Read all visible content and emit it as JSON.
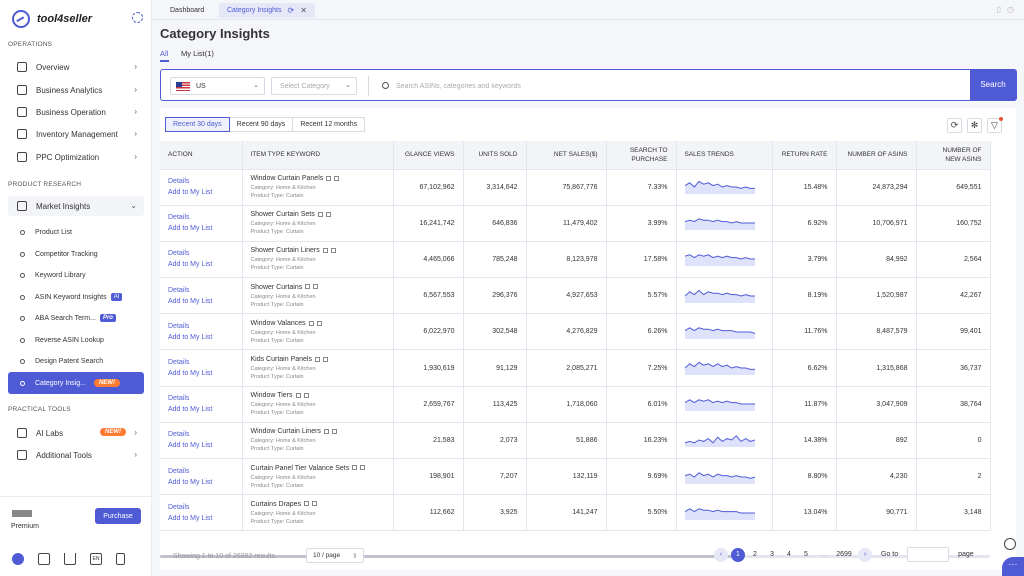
{
  "app": {
    "name": "tool4seller"
  },
  "sidebar": {
    "sections": {
      "operations": "OPERATIONS",
      "research": "PRODUCT RESEARCH",
      "tools": "PRACTICAL TOOLS"
    },
    "operations": [
      {
        "label": "Overview",
        "icon": "home-icon"
      },
      {
        "label": "Business Analytics",
        "icon": "analytics-icon"
      },
      {
        "label": "Business Operation",
        "icon": "operation-icon"
      },
      {
        "label": "Inventory Management",
        "icon": "inventory-icon"
      },
      {
        "label": "PPC Optimization",
        "icon": "monitor-icon"
      }
    ],
    "market": {
      "label": "Market Insights",
      "icon": "market-icon"
    },
    "research_items": [
      {
        "label": "Product List"
      },
      {
        "label": "Competitor Tracking"
      },
      {
        "label": "Keyword Library"
      },
      {
        "label": "ASIN Keyword Insights",
        "badge": "AI"
      },
      {
        "label": "ABA Search Term...",
        "badge": "Pro"
      },
      {
        "label": "Reverse ASIN Lookup"
      },
      {
        "label": "Design Patent Search"
      },
      {
        "label": "Category Insig...",
        "badge": "NEW!"
      }
    ],
    "tools": [
      {
        "label": "AI Labs",
        "icon": "ai-labs-icon",
        "badge": "NEW!"
      },
      {
        "label": "Additional Tools",
        "icon": "grid-icon"
      }
    ],
    "plan": "Premium",
    "purchase": "Purchase"
  },
  "tabs": [
    {
      "label": "Dashboard"
    },
    {
      "label": "Category Insights"
    }
  ],
  "page": {
    "title": "Category Insights",
    "list_tabs": [
      "All",
      "My List(1)"
    ]
  },
  "search": {
    "country": "US",
    "category_placeholder": "Select Category",
    "placeholder": "Search ASINs, categories and keywords",
    "button": "Search"
  },
  "ranges": [
    "Recent 30 days",
    "Recent 90 days",
    "Recent 12 months"
  ],
  "table": {
    "headers": {
      "action": "ACTION",
      "keyword": "ITEM TYPE KEYWORD",
      "glance": "GLANCE VIEWS",
      "units": "UNITS SOLD",
      "sales": "NET SALES($)",
      "s2p_1": "SEARCH TO",
      "s2p_2": "PURCHASE",
      "trends": "SALES TRENDS",
      "return": "RETURN RATE",
      "asins": "NUMBER OF ASINS",
      "new_1": "NUMBER OF",
      "new_2": "NEW ASINS"
    },
    "details": "Details",
    "add": "Add to My List",
    "rows": [
      {
        "keyword": "Window Curtain Panels",
        "category": "Category: Home & Kitchen",
        "type": "Product Type: Curtain",
        "glance": "67,102,962",
        "units": "3,314,642",
        "sales": "75,867,776",
        "s2p": "7.33%",
        "ret": "15.48%",
        "asins": "24,873,294",
        "new": "649,551",
        "trend": [
          6,
          8,
          5,
          9,
          7,
          8,
          6,
          7,
          5,
          6,
          5,
          5,
          4,
          5,
          4,
          4
        ]
      },
      {
        "keyword": "Shower Curtain Sets",
        "category": "Category: Home & Kitchen",
        "type": "Product Type: Curtain",
        "glance": "16,241,742",
        "units": "646,836",
        "sales": "11,479,402",
        "s2p": "3.99%",
        "ret": "6.92%",
        "asins": "10,706,971",
        "new": "160,752",
        "trend": [
          6,
          7,
          6,
          8,
          7,
          7,
          6,
          7,
          6,
          6,
          5,
          6,
          5,
          5,
          5,
          5
        ]
      },
      {
        "keyword": "Shower Curtain Liners",
        "category": "Category: Home & Kitchen",
        "type": "Product Type: Curtain",
        "glance": "4,465,066",
        "units": "785,248",
        "sales": "8,123,978",
        "s2p": "17.58%",
        "ret": "3.79%",
        "asins": "84,992",
        "new": "2,564",
        "trend": [
          7,
          8,
          6,
          8,
          7,
          8,
          6,
          7,
          6,
          7,
          6,
          6,
          5,
          6,
          5,
          5
        ]
      },
      {
        "keyword": "Shower Curtains",
        "category": "Category: Home & Kitchen",
        "type": "Product Type: Curtain",
        "glance": "6,567,553",
        "units": "296,376",
        "sales": "4,927,653",
        "s2p": "5.57%",
        "ret": "8.19%",
        "asins": "1,520,987",
        "new": "42,267",
        "trend": [
          5,
          8,
          6,
          9,
          6,
          8,
          7,
          7,
          6,
          7,
          6,
          6,
          5,
          6,
          5,
          5
        ]
      },
      {
        "keyword": "Window Valances",
        "category": "Category: Home & Kitchen",
        "type": "Product Type: Curtain",
        "glance": "6,022,970",
        "units": "302,548",
        "sales": "4,276,829",
        "s2p": "6.26%",
        "ret": "11.76%",
        "asins": "8,487,579",
        "new": "99,401",
        "trend": [
          6,
          8,
          6,
          8,
          7,
          7,
          6,
          7,
          6,
          6,
          6,
          5,
          5,
          5,
          5,
          4
        ]
      },
      {
        "keyword": "Kids Curtain Panels",
        "category": "Category: Home & Kitchen",
        "type": "Product Type: Curtain",
        "glance": "1,930,619",
        "units": "91,129",
        "sales": "2,085,271",
        "s2p": "7.25%",
        "ret": "6.62%",
        "asins": "1,315,868",
        "new": "36,737",
        "trend": [
          5,
          8,
          6,
          9,
          7,
          8,
          6,
          8,
          6,
          7,
          5,
          6,
          5,
          5,
          4,
          4
        ]
      },
      {
        "keyword": "Window Tiers",
        "category": "Category: Home & Kitchen",
        "type": "Product Type: Curtain",
        "glance": "2,659,767",
        "units": "113,425",
        "sales": "1,718,060",
        "s2p": "6.01%",
        "ret": "11.87%",
        "asins": "3,047,909",
        "new": "38,764",
        "trend": [
          6,
          8,
          6,
          8,
          7,
          8,
          6,
          7,
          6,
          7,
          6,
          6,
          5,
          5,
          5,
          5
        ]
      },
      {
        "keyword": "Window Curtain Liners",
        "category": "Category: Home & Kitchen",
        "type": "Product Type: Curtain",
        "glance": "21,583",
        "units": "2,073",
        "sales": "51,886",
        "s2p": "16.23%",
        "ret": "14.38%",
        "asins": "892",
        "new": "0",
        "trend": [
          3,
          4,
          3,
          5,
          4,
          6,
          3,
          7,
          4,
          6,
          5,
          8,
          4,
          6,
          4,
          5
        ]
      },
      {
        "keyword": "Curtain Panel Tier Valance Sets",
        "category": "Category: Home & Kitchen",
        "type": "Product Type: Curtain",
        "glance": "198,901",
        "units": "7,207",
        "sales": "132,119",
        "s2p": "9.69%",
        "ret": "8.80%",
        "asins": "4,230",
        "new": "2",
        "trend": [
          6,
          7,
          5,
          8,
          6,
          7,
          5,
          7,
          6,
          6,
          5,
          6,
          5,
          5,
          4,
          5
        ]
      },
      {
        "keyword": "Curtains Drapes",
        "category": "Category: Home & Kitchen",
        "type": "Product Type: Curtain",
        "glance": "112,662",
        "units": "3,925",
        "sales": "141,247",
        "s2p": "5.50%",
        "ret": "13.04%",
        "asins": "90,771",
        "new": "3,148",
        "trend": [
          6,
          8,
          6,
          8,
          7,
          7,
          6,
          7,
          6,
          6,
          6,
          6,
          5,
          5,
          5,
          5
        ]
      }
    ]
  },
  "footer": {
    "showing": "Showing 1 to 10 of 26982 results.",
    "per_page": "10 / page",
    "pages": [
      "1",
      "2",
      "3",
      "4",
      "5",
      "...",
      "2699"
    ],
    "goto": "Go to",
    "page_word": "page"
  },
  "colors": {
    "accent": "#4f5bd5",
    "badge_new": "#ff7b32"
  }
}
